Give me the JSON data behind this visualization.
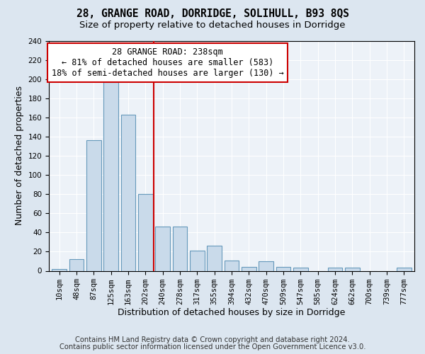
{
  "title": "28, GRANGE ROAD, DORRIDGE, SOLIHULL, B93 8QS",
  "subtitle": "Size of property relative to detached houses in Dorridge",
  "xlabel": "Distribution of detached houses by size in Dorridge",
  "ylabel": "Number of detached properties",
  "bar_labels": [
    "10sqm",
    "48sqm",
    "87sqm",
    "125sqm",
    "163sqm",
    "202sqm",
    "240sqm",
    "278sqm",
    "317sqm",
    "355sqm",
    "394sqm",
    "432sqm",
    "470sqm",
    "509sqm",
    "547sqm",
    "585sqm",
    "624sqm",
    "662sqm",
    "700sqm",
    "739sqm",
    "777sqm"
  ],
  "bar_values": [
    2,
    12,
    136,
    197,
    163,
    80,
    46,
    46,
    21,
    26,
    11,
    4,
    10,
    4,
    3,
    0,
    3,
    3,
    0,
    0,
    3
  ],
  "bar_color": "#c9daea",
  "bar_edge_color": "#6699bb",
  "vline_x": 5.5,
  "vline_color": "#cc0000",
  "annotation_line1": "28 GRANGE ROAD: 238sqm",
  "annotation_line2": "← 81% of detached houses are smaller (583)",
  "annotation_line3": "18% of semi-detached houses are larger (130) →",
  "annotation_box_color": "#ffffff",
  "annotation_box_edge": "#cc0000",
  "footnote1": "Contains HM Land Registry data © Crown copyright and database right 2024.",
  "footnote2": "Contains public sector information licensed under the Open Government Licence v3.0.",
  "bg_color": "#dce6f0",
  "plot_bg_color": "#edf2f8",
  "ylim": [
    0,
    240
  ],
  "title_fontsize": 10.5,
  "subtitle_fontsize": 9.5,
  "axis_label_fontsize": 9,
  "tick_fontsize": 7.5,
  "annotation_fontsize": 8.5,
  "footnote_fontsize": 7.2
}
